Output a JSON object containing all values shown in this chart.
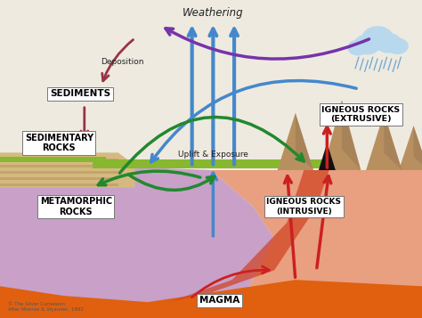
{
  "labels": {
    "weathering": "Weathering",
    "deposition": "Deposition",
    "uplift": "Uplift & Exposure",
    "sediments": "SEDIMENTS",
    "sedimentary": "SEDIMENTARY\nROCKS",
    "metamorphic": "METAMORPHIC\nROCKS",
    "igneous_ext": "IGNEOUS ROCKS\n(EXTRUSIVE)",
    "igneous_int": "IGNEOUS ROCKS\n(INTRUSIVE)",
    "magma": "MAGMA",
    "copyright": "© The Silver Cameleon\nAfter Monroe & Viçander, 1992"
  },
  "colors": {
    "sky": "#f0ece0",
    "sky_upper": "#e8e8e0",
    "grass": "#7ab030",
    "sediment_tan": "#d4b878",
    "metamorphic": "#c8a0c8",
    "igneous_intrusive": "#e8a080",
    "magma_orange": "#e06010",
    "magma_red": "#cc3010",
    "mountain": "#b89060",
    "arrow_blue": "#4488cc",
    "arrow_blue_dark": "#3366aa",
    "arrow_red": "#cc2020",
    "arrow_green": "#228830",
    "arrow_purple": "#7733aa",
    "arrow_darkred": "#aa2244",
    "cloud": "#aaccee",
    "box_bg": "#ffffff",
    "box_edge": "#888888"
  }
}
